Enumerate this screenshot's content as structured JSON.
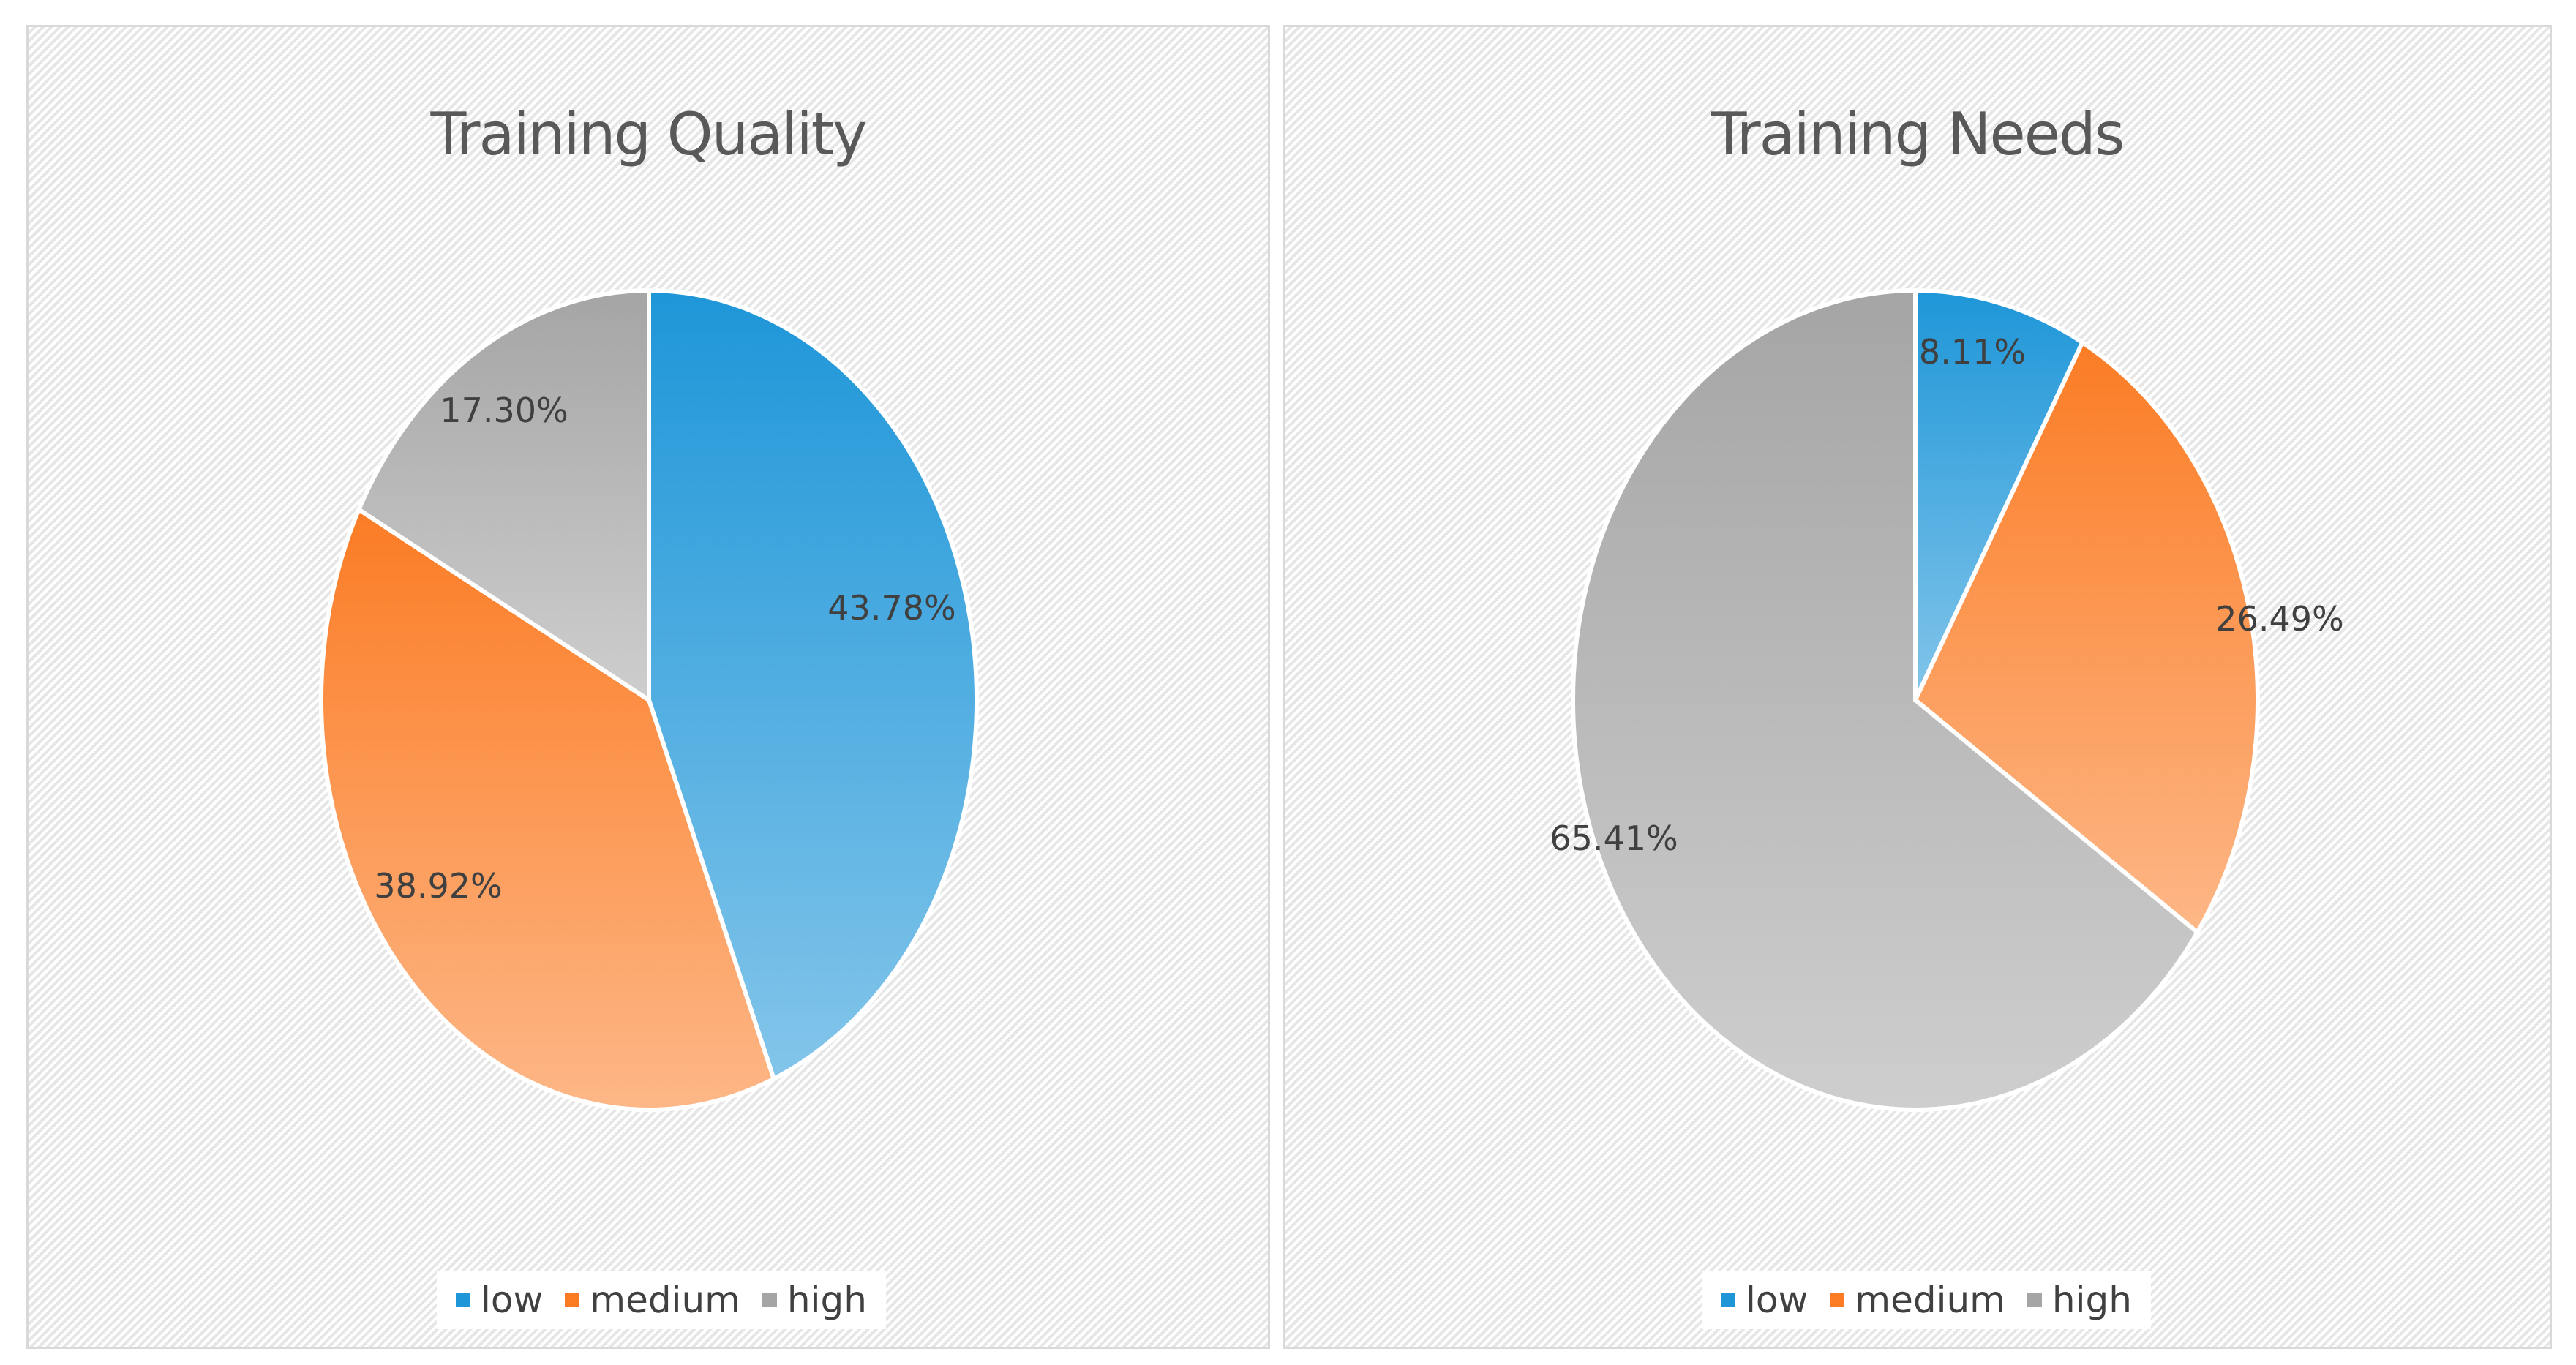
{
  "chart_data": [
    {
      "type": "pie",
      "title": "Training Quality",
      "categories": [
        "low",
        "medium",
        "high"
      ],
      "values": [
        43.78,
        38.92,
        17.3
      ],
      "labels": [
        "43.78%",
        "38.92%",
        "17.30%"
      ],
      "colors": [
        "#1e96d8",
        "#fb7c25",
        "#a5a5a5"
      ],
      "legend_position": "bottom"
    },
    {
      "type": "pie",
      "title": "Training Needs",
      "categories": [
        "low",
        "medium",
        "high"
      ],
      "values": [
        8.11,
        26.49,
        65.41
      ],
      "labels": [
        "8.11%",
        "26.49%",
        "65.41%"
      ],
      "colors": [
        "#1e96d8",
        "#fb7c25",
        "#a5a5a5"
      ],
      "legend_position": "bottom"
    }
  ]
}
